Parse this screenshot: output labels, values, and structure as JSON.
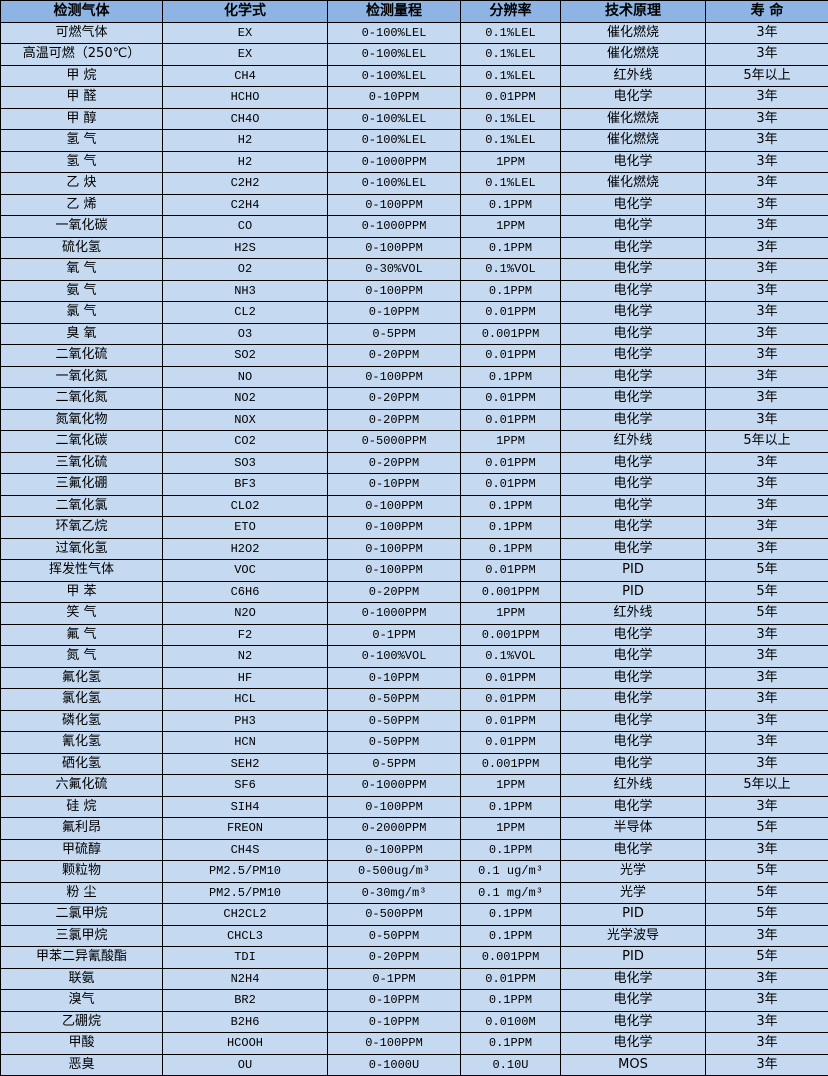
{
  "colors": {
    "header_bg": "#8db4e2",
    "row_bg": "#c5d9f1",
    "border": "#000000"
  },
  "headers": [
    "检测气体",
    "化学式",
    "检测量程",
    "分辨率",
    "技术原理",
    "寿 命"
  ],
  "rows": [
    [
      "可燃气体",
      "EX",
      "0-100%LEL",
      "0.1%LEL",
      "催化燃烧",
      "3年"
    ],
    [
      "高温可燃（250℃）",
      "EX",
      "0-100%LEL",
      "0.1%LEL",
      "催化燃烧",
      "3年"
    ],
    [
      "甲 烷",
      "CH4",
      "0-100%LEL",
      "0.1%LEL",
      "红外线",
      "5年以上"
    ],
    [
      "甲 醛",
      "HCHO",
      "0-10PPM",
      "0.01PPM",
      "电化学",
      "3年"
    ],
    [
      "甲 醇",
      "CH4O",
      "0-100%LEL",
      "0.1%LEL",
      "催化燃烧",
      "3年"
    ],
    [
      "氢 气",
      "H2",
      "0-100%LEL",
      "0.1%LEL",
      "催化燃烧",
      "3年"
    ],
    [
      "氢 气",
      "H2",
      "0-1000PPM",
      "1PPM",
      "电化学",
      "3年"
    ],
    [
      "乙 炔",
      "C2H2",
      "0-100%LEL",
      "0.1%LEL",
      "催化燃烧",
      "3年"
    ],
    [
      "乙 烯",
      "C2H4",
      "0-100PPM",
      "0.1PPM",
      "电化学",
      "3年"
    ],
    [
      "一氧化碳",
      "CO",
      "0-1000PPM",
      "1PPM",
      "电化学",
      "3年"
    ],
    [
      "硫化氢",
      "H2S",
      "0-100PPM",
      "0.1PPM",
      "电化学",
      "3年"
    ],
    [
      "氧 气",
      "O2",
      "0-30%VOL",
      "0.1%VOL",
      "电化学",
      "3年"
    ],
    [
      "氨 气",
      "NH3",
      "0-100PPM",
      "0.1PPM",
      "电化学",
      "3年"
    ],
    [
      "氯 气",
      "CL2",
      "0-10PPM",
      "0.01PPM",
      "电化学",
      "3年"
    ],
    [
      "臭 氧",
      "O3",
      "0-5PPM",
      "0.001PPM",
      "电化学",
      "3年"
    ],
    [
      "二氧化硫",
      "SO2",
      "0-20PPM",
      "0.01PPM",
      "电化学",
      "3年"
    ],
    [
      "一氧化氮",
      "NO",
      "0-100PPM",
      "0.1PPM",
      "电化学",
      "3年"
    ],
    [
      "二氧化氮",
      "NO2",
      "0-20PPM",
      "0.01PPM",
      "电化学",
      "3年"
    ],
    [
      "氮氧化物",
      "NOX",
      "0-20PPM",
      "0.01PPM",
      "电化学",
      "3年"
    ],
    [
      "二氧化碳",
      "CO2",
      "0-5000PPM",
      "1PPM",
      "红外线",
      "5年以上"
    ],
    [
      "三氧化硫",
      "SO3",
      "0-20PPM",
      "0.01PPM",
      "电化学",
      "3年"
    ],
    [
      "三氟化硼",
      "BF3",
      "0-10PPM",
      "0.01PPM",
      "电化学",
      "3年"
    ],
    [
      "二氧化氯",
      "CLO2",
      "0-100PPM",
      "0.1PPM",
      "电化学",
      "3年"
    ],
    [
      "环氧乙烷",
      "ETO",
      "0-100PPM",
      "0.1PPM",
      "电化学",
      "3年"
    ],
    [
      "过氧化氢",
      "H2O2",
      "0-100PPM",
      "0.1PPM",
      "电化学",
      "3年"
    ],
    [
      "挥发性气体",
      "VOC",
      "0-100PPM",
      "0.01PPM",
      "PID",
      "5年"
    ],
    [
      "甲 苯",
      "C6H6",
      "0-20PPM",
      "0.001PPM",
      "PID",
      "5年"
    ],
    [
      "笑 气",
      "N2O",
      "0-1000PPM",
      "1PPM",
      "红外线",
      "5年"
    ],
    [
      "氟 气",
      "F2",
      "0-1PPM",
      "0.001PPM",
      "电化学",
      "3年"
    ],
    [
      "氮 气",
      "N2",
      "0-100%VOL",
      "0.1%VOL",
      "电化学",
      "3年"
    ],
    [
      "氟化氢",
      "HF",
      "0-10PPM",
      "0.01PPM",
      "电化学",
      "3年"
    ],
    [
      "氯化氢",
      "HCL",
      "0-50PPM",
      "0.01PPM",
      "电化学",
      "3年"
    ],
    [
      "磷化氢",
      "PH3",
      "0-50PPM",
      "0.01PPM",
      "电化学",
      "3年"
    ],
    [
      "氰化氢",
      "HCN",
      "0-50PPM",
      "0.01PPM",
      "电化学",
      "3年"
    ],
    [
      "硒化氢",
      "SEH2",
      "0-5PPM",
      "0.001PPM",
      "电化学",
      "3年"
    ],
    [
      "六氟化硫",
      "SF6",
      "0-1000PPM",
      "1PPM",
      "红外线",
      "5年以上"
    ],
    [
      "硅 烷",
      "SIH4",
      "0-100PPM",
      "0.1PPM",
      "电化学",
      "3年"
    ],
    [
      "氟利昂",
      "FREON",
      "0-2000PPM",
      "1PPM",
      "半导体",
      "5年"
    ],
    [
      "甲硫醇",
      "CH4S",
      "0-100PPM",
      "0.1PPM",
      "电化学",
      "3年"
    ],
    [
      "颗粒物",
      "PM2.5/PM10",
      "0-500ug/m³",
      "0.1 ug/m³",
      "光学",
      "5年"
    ],
    [
      "粉 尘",
      "PM2.5/PM10",
      "0-30mg/m³",
      "0.1 mg/m³",
      "光学",
      "5年"
    ],
    [
      "二氯甲烷",
      "CH2CL2",
      "0-500PPM",
      "0.1PPM",
      "PID",
      "5年"
    ],
    [
      "三氯甲烷",
      "CHCL3",
      "0-50PPM",
      "0.1PPM",
      "光学波导",
      "3年"
    ],
    [
      "甲苯二异氰酸酯",
      "TDI",
      "0-20PPM",
      "0.001PPM",
      "PID",
      "5年"
    ],
    [
      "联氨",
      "N2H4",
      "0-1PPM",
      "0.01PPM",
      "电化学",
      "3年"
    ],
    [
      "溴气",
      "BR2",
      "0-10PPM",
      "0.1PPM",
      "电化学",
      "3年"
    ],
    [
      "乙硼烷",
      "B2H6",
      "0-10PPM",
      "0.0100M",
      "电化学",
      "3年"
    ],
    [
      "甲酸",
      "HCOOH",
      "0-100PPM",
      "0.1PPM",
      "电化学",
      "3年"
    ],
    [
      "恶臭",
      "OU",
      "0-1000U",
      "0.10U",
      "MOS",
      "3年"
    ]
  ]
}
